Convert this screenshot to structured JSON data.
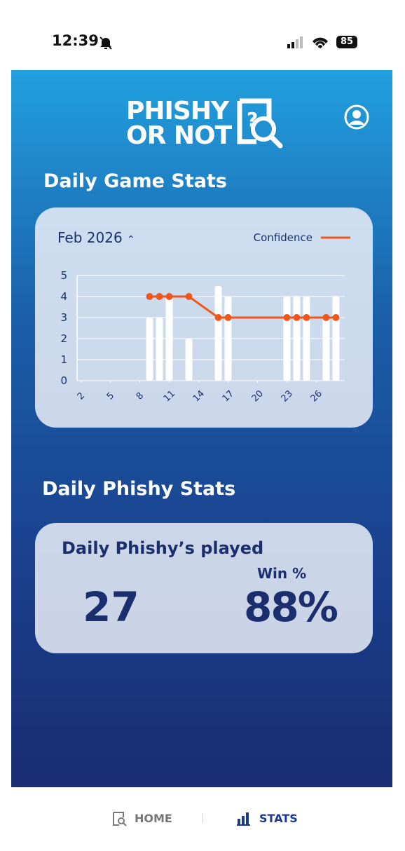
{
  "status_bar": {
    "time": "12:39",
    "battery": "85"
  },
  "header": {
    "logo_line1": "PHISHY",
    "logo_line2": "OR NOT"
  },
  "game_stats": {
    "title": "Daily Game Stats",
    "month": "Feb 2026"
  },
  "chart_data": {
    "type": "bar",
    "x": [
      9,
      10,
      11,
      13,
      16,
      17,
      23,
      24,
      25,
      27,
      28
    ],
    "series": [
      {
        "type": "bar",
        "color": "#ffffff",
        "values": [
          3,
          3,
          4,
          2,
          4.5,
          4,
          4,
          4,
          4,
          3,
          4
        ]
      },
      {
        "type": "line",
        "name": "Confidence",
        "color": "#f0561c",
        "values": [
          4,
          4,
          4,
          4,
          3,
          3,
          3,
          3,
          3,
          3,
          3
        ]
      }
    ],
    "xlim": [
      1.6,
      28.9
    ],
    "xticks": [
      2,
      5,
      8,
      11,
      14,
      17,
      20,
      23,
      26
    ],
    "ylim": [
      0,
      5
    ],
    "yticks": [
      0,
      1,
      2,
      3,
      4,
      5
    ],
    "grid": true,
    "legend": "top-right"
  },
  "phishy_stats": {
    "title": "Daily Phishy Stats",
    "played_label": "Daily Phishy’s played",
    "played_value": "27",
    "win_label": "Win %",
    "win_value": "88%"
  },
  "nav": {
    "home": "HOME",
    "stats": "STATS"
  }
}
